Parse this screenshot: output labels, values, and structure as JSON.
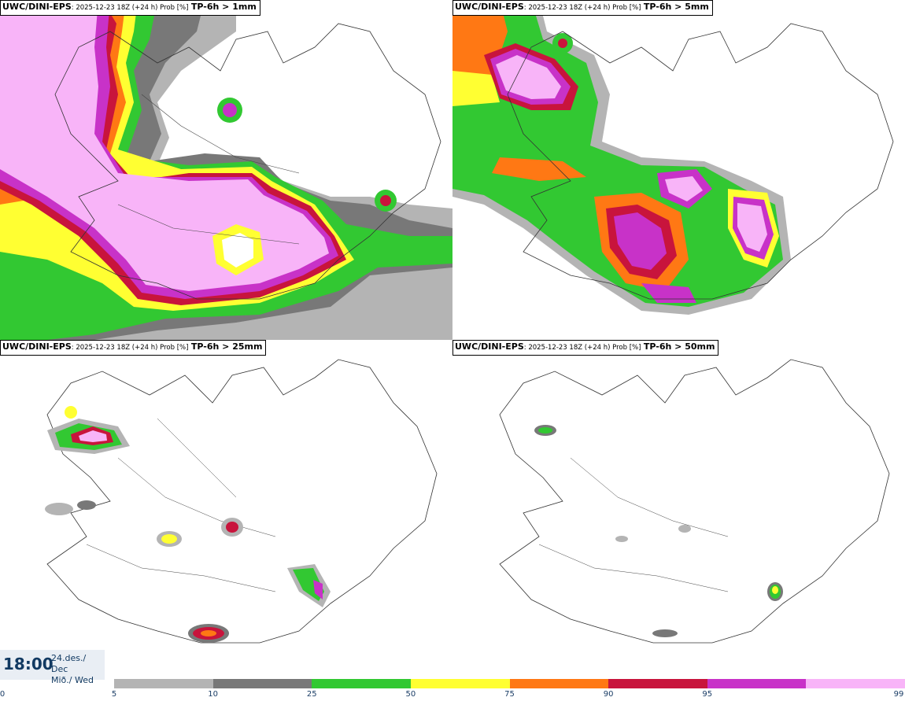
{
  "panels": [
    {
      "model": "UWC/DINI-EPS",
      "meta": ": 2025-12-23 18Z (+24 h) Prob [%]",
      "variable": "TP-6h > 1mm"
    },
    {
      "model": "UWC/DINI-EPS",
      "meta": ": 2025-12-23 18Z (+24 h) Prob [%]",
      "variable": "TP-6h > 5mm"
    },
    {
      "model": "UWC/DINI-EPS",
      "meta": ": 2025-12-23 18Z (+24 h) Prob [%]",
      "variable": "TP-6h > 25mm"
    },
    {
      "model": "UWC/DINI-EPS",
      "meta": ": 2025-12-23 18Z (+24 h) Prob [%]",
      "variable": "TP-6h > 50mm"
    }
  ],
  "valid_time": {
    "time": "18:00",
    "date_line1": "24.des./ Dec",
    "date_line2": "Mið./ Wed"
  },
  "colorbar": {
    "ticks": [
      "0",
      "5",
      "10",
      "25",
      "50",
      "75",
      "90",
      "95",
      "99"
    ],
    "colors": [
      "#b4b4b4",
      "#787878",
      "#32c832",
      "#ffff32",
      "#ff7814",
      "#c8143c",
      "#c832c8",
      "#f8b4f8"
    ],
    "white_below": "#ffffff"
  }
}
